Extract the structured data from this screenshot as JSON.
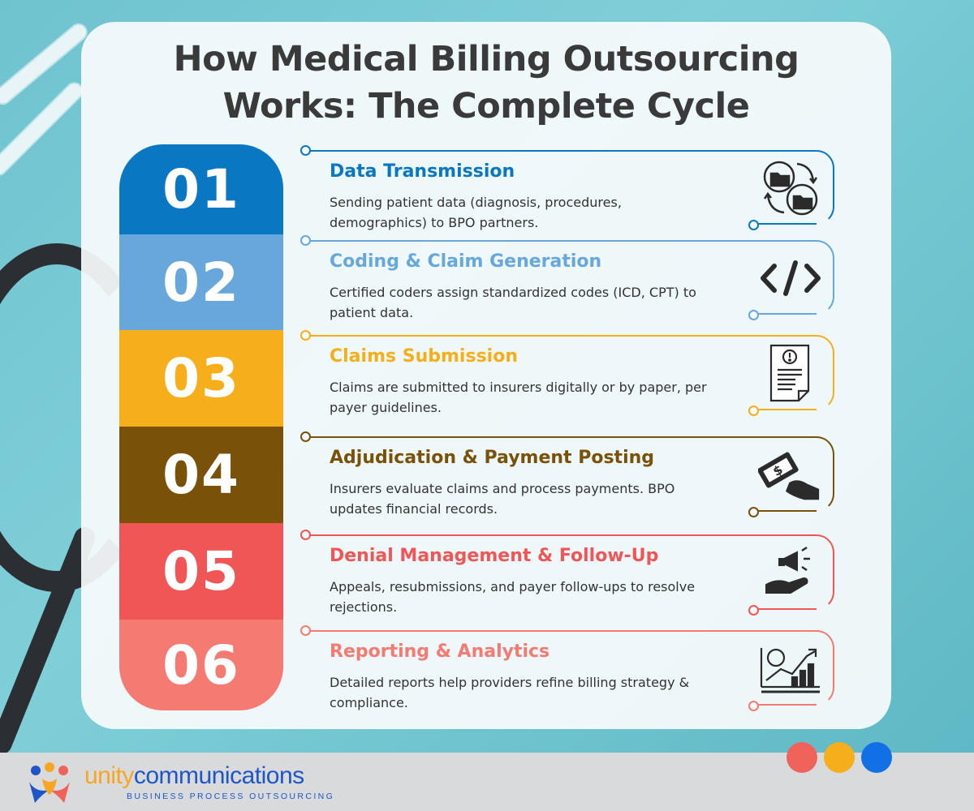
{
  "title": {
    "line1": "How Medical Billing Outsourcing",
    "line2": "Works: The Complete Cycle"
  },
  "steps": [
    {
      "number": "01",
      "title": "Data Transmission",
      "description": "Sending patient data (diagnosis, procedures, demographics) to BPO partners.",
      "color": "#0a77c2",
      "icon": "folder-transfer-icon"
    },
    {
      "number": "02",
      "title": "Coding & Claim Generation",
      "description": "Certified coders assign standardized codes (ICD, CPT) to patient data.",
      "color": "#67a7dc",
      "icon": "code-icon"
    },
    {
      "number": "03",
      "title": "Claims Submission",
      "description": "Claims are submitted to insurers digitally or by paper, per payer guidelines.",
      "color": "#f7ae1b",
      "icon": "document-alert-icon"
    },
    {
      "number": "04",
      "title": "Adjudication & Payment Posting",
      "description": "Insurers evaluate claims and process payments. BPO updates financial records.",
      "color": "#7a5108",
      "icon": "money-hand-icon"
    },
    {
      "number": "05",
      "title": "Denial Management & Follow-Up",
      "description": "Appeals, resubmissions, and payer follow-ups to resolve rejections.",
      "color": "#f05656",
      "icon": "megaphone-hand-icon"
    },
    {
      "number": "06",
      "title": "Reporting & Analytics",
      "description": "Detailed reports help providers refine billing strategy & compliance.",
      "color": "#f47a72",
      "icon": "analytics-chart-icon"
    }
  ],
  "footer": {
    "brand_unity": "unity",
    "brand_communications": "communications",
    "tagline": "BUSINESS PROCESS OUTSOURCING",
    "dot_colors": [
      "#f0635b",
      "#f7ae1b",
      "#1170e6"
    ]
  }
}
